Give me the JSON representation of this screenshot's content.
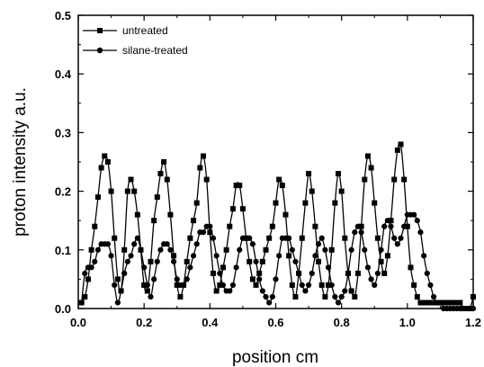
{
  "chart_data": {
    "type": "line",
    "xlabel": "position cm",
    "ylabel": "proton intensity a.u.",
    "xlim": [
      0.0,
      1.2
    ],
    "ylim": [
      0.0,
      0.5
    ],
    "xticks": [
      "0.0",
      "0.2",
      "0.4",
      "0.6",
      "0.8",
      "1.0",
      "1.2"
    ],
    "yticks": [
      "0.0",
      "0.1",
      "0.2",
      "0.3",
      "0.4",
      "0.5"
    ],
    "grid": false,
    "legend_position": "top-left",
    "series": [
      {
        "name": "untreated",
        "marker": "square",
        "color": "#000000",
        "x": [
          0.01,
          0.02,
          0.03,
          0.04,
          0.05,
          0.06,
          0.07,
          0.08,
          0.09,
          0.1,
          0.11,
          0.12,
          0.13,
          0.14,
          0.15,
          0.16,
          0.17,
          0.18,
          0.19,
          0.2,
          0.21,
          0.22,
          0.23,
          0.24,
          0.25,
          0.26,
          0.27,
          0.28,
          0.29,
          0.3,
          0.31,
          0.32,
          0.33,
          0.34,
          0.35,
          0.36,
          0.37,
          0.38,
          0.39,
          0.4,
          0.41,
          0.42,
          0.43,
          0.44,
          0.45,
          0.46,
          0.47,
          0.48,
          0.49,
          0.5,
          0.51,
          0.52,
          0.53,
          0.54,
          0.55,
          0.56,
          0.57,
          0.58,
          0.59,
          0.6,
          0.61,
          0.62,
          0.63,
          0.64,
          0.65,
          0.66,
          0.67,
          0.68,
          0.69,
          0.7,
          0.71,
          0.72,
          0.73,
          0.74,
          0.75,
          0.76,
          0.77,
          0.78,
          0.79,
          0.8,
          0.81,
          0.82,
          0.83,
          0.84,
          0.85,
          0.86,
          0.87,
          0.88,
          0.89,
          0.9,
          0.91,
          0.92,
          0.93,
          0.94,
          0.95,
          0.96,
          0.97,
          0.98,
          0.99,
          1.0,
          1.01,
          1.02,
          1.03,
          1.04,
          1.05,
          1.06,
          1.07,
          1.08,
          1.09,
          1.1,
          1.11,
          1.12,
          1.13,
          1.14,
          1.15,
          1.16,
          1.17,
          1.18,
          1.19,
          1.2
        ],
        "values": [
          0.01,
          0.02,
          0.05,
          0.1,
          0.14,
          0.19,
          0.24,
          0.26,
          0.25,
          0.2,
          0.12,
          0.05,
          0.03,
          0.1,
          0.2,
          0.22,
          0.2,
          0.16,
          0.1,
          0.04,
          0.03,
          0.08,
          0.15,
          0.19,
          0.23,
          0.25,
          0.22,
          0.16,
          0.09,
          0.04,
          0.02,
          0.04,
          0.08,
          0.12,
          0.15,
          0.18,
          0.24,
          0.26,
          0.22,
          0.13,
          0.06,
          0.03,
          0.04,
          0.07,
          0.1,
          0.14,
          0.17,
          0.21,
          0.21,
          0.17,
          0.12,
          0.08,
          0.05,
          0.04,
          0.06,
          0.08,
          0.1,
          0.12,
          0.14,
          0.18,
          0.22,
          0.21,
          0.16,
          0.09,
          0.04,
          0.02,
          0.06,
          0.12,
          0.18,
          0.23,
          0.2,
          0.14,
          0.08,
          0.04,
          0.02,
          0.04,
          0.1,
          0.18,
          0.23,
          0.2,
          0.12,
          0.06,
          0.03,
          0.02,
          0.06,
          0.14,
          0.22,
          0.26,
          0.24,
          0.18,
          0.12,
          0.08,
          0.06,
          0.09,
          0.15,
          0.22,
          0.27,
          0.28,
          0.22,
          0.14,
          0.07,
          0.04,
          0.02,
          0.01,
          0.01,
          0.01,
          0.01,
          0.01,
          0.01,
          0.01,
          0.01,
          0.01,
          0.01,
          0.01,
          0.01,
          0.01,
          0.0,
          0.0,
          0.0,
          0.02
        ]
      },
      {
        "name": "silane-treated",
        "marker": "circle",
        "color": "#000000",
        "x": [
          0.01,
          0.02,
          0.03,
          0.04,
          0.05,
          0.06,
          0.07,
          0.08,
          0.09,
          0.1,
          0.11,
          0.12,
          0.13,
          0.14,
          0.15,
          0.16,
          0.17,
          0.18,
          0.19,
          0.2,
          0.21,
          0.22,
          0.23,
          0.24,
          0.25,
          0.26,
          0.27,
          0.28,
          0.29,
          0.3,
          0.31,
          0.32,
          0.33,
          0.34,
          0.35,
          0.36,
          0.37,
          0.38,
          0.39,
          0.4,
          0.41,
          0.42,
          0.43,
          0.44,
          0.45,
          0.46,
          0.47,
          0.48,
          0.49,
          0.5,
          0.51,
          0.52,
          0.53,
          0.54,
          0.55,
          0.56,
          0.57,
          0.58,
          0.59,
          0.6,
          0.61,
          0.62,
          0.63,
          0.64,
          0.65,
          0.66,
          0.67,
          0.68,
          0.69,
          0.7,
          0.71,
          0.72,
          0.73,
          0.74,
          0.75,
          0.76,
          0.77,
          0.78,
          0.79,
          0.8,
          0.81,
          0.82,
          0.83,
          0.84,
          0.85,
          0.86,
          0.87,
          0.88,
          0.89,
          0.9,
          0.91,
          0.92,
          0.93,
          0.94,
          0.95,
          0.96,
          0.97,
          0.98,
          0.99,
          1.0,
          1.01,
          1.02,
          1.03,
          1.04,
          1.05,
          1.06,
          1.07,
          1.08,
          1.09,
          1.1,
          1.11,
          1.12,
          1.13,
          1.14,
          1.15,
          1.16,
          1.17,
          1.18,
          1.19,
          1.2
        ],
        "values": [
          0.01,
          0.06,
          0.07,
          0.07,
          0.08,
          0.1,
          0.11,
          0.11,
          0.11,
          0.09,
          0.04,
          0.01,
          0.03,
          0.06,
          0.08,
          0.09,
          0.11,
          0.12,
          0.1,
          0.07,
          0.04,
          0.02,
          0.05,
          0.08,
          0.1,
          0.11,
          0.11,
          0.1,
          0.08,
          0.05,
          0.04,
          0.04,
          0.05,
          0.07,
          0.09,
          0.11,
          0.13,
          0.13,
          0.14,
          0.14,
          0.12,
          0.09,
          0.06,
          0.04,
          0.03,
          0.03,
          0.04,
          0.07,
          0.1,
          0.12,
          0.12,
          0.12,
          0.11,
          0.08,
          0.05,
          0.03,
          0.02,
          0.01,
          0.02,
          0.05,
          0.09,
          0.12,
          0.12,
          0.12,
          0.1,
          0.08,
          0.06,
          0.04,
          0.03,
          0.04,
          0.06,
          0.09,
          0.11,
          0.12,
          0.1,
          0.07,
          0.04,
          0.02,
          0.01,
          0.02,
          0.03,
          0.06,
          0.1,
          0.13,
          0.14,
          0.13,
          0.1,
          0.07,
          0.05,
          0.04,
          0.06,
          0.1,
          0.14,
          0.15,
          0.14,
          0.12,
          0.11,
          0.12,
          0.14,
          0.16,
          0.16,
          0.16,
          0.15,
          0.13,
          0.09,
          0.06,
          0.04,
          0.02,
          0.01,
          0.01,
          0.0,
          0.0,
          0.0,
          0.0,
          0.0,
          0.0,
          0.0,
          0.0,
          0.0,
          0.0
        ]
      }
    ]
  }
}
